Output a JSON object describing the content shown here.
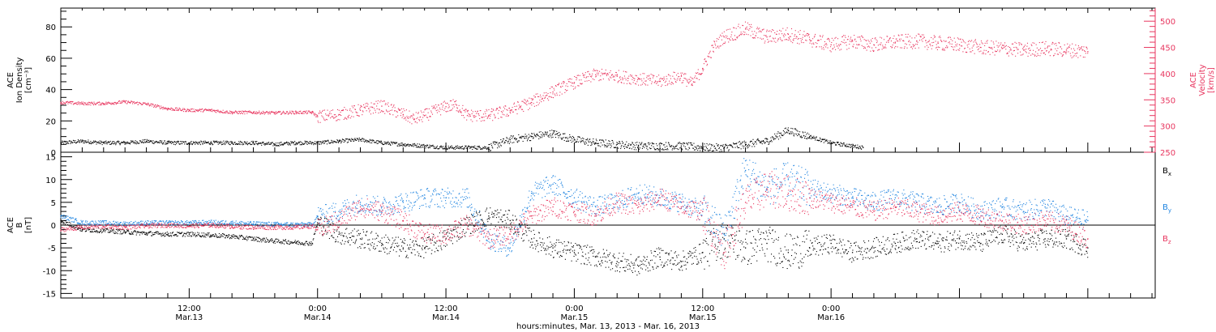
{
  "chart_data": [
    {
      "type": "scatter",
      "panel": "top",
      "left_axis_label": [
        "ACE",
        "Ion Density",
        "[cm⁻³]"
      ],
      "right_axis_label": [
        "ACE",
        "Velocity",
        "[km/s]"
      ],
      "left_ylim": [
        0,
        92
      ],
      "left_ticks": [
        "0",
        "20",
        "40",
        "60",
        "80"
      ],
      "right_ylim": [
        250,
        525
      ],
      "right_ticks": [
        "250",
        "300",
        "350",
        "400",
        "450",
        "500"
      ],
      "series": [
        {
          "color": "#000000",
          "axis": "left",
          "points": [
            [
              0,
              6
            ],
            [
              2,
              7
            ],
            [
              4,
              6
            ],
            [
              6,
              6
            ],
            [
              8,
              7
            ],
            [
              10,
              6
            ],
            [
              12,
              6
            ],
            [
              14,
              6
            ],
            [
              16,
              6
            ],
            [
              18,
              6
            ],
            [
              20,
              5
            ],
            [
              22,
              6
            ],
            [
              24,
              6
            ],
            [
              26,
              7
            ],
            [
              28,
              8
            ],
            [
              30,
              6
            ],
            [
              32,
              5
            ],
            [
              34,
              4
            ],
            [
              36,
              3
            ],
            [
              38,
              3
            ],
            [
              40,
              3
            ],
            [
              42,
              8
            ],
            [
              44,
              10
            ],
            [
              46,
              12
            ],
            [
              48,
              8
            ],
            [
              50,
              6
            ],
            [
              52,
              5
            ],
            [
              54,
              4
            ],
            [
              56,
              4
            ],
            [
              58,
              4
            ],
            [
              60,
              3
            ],
            [
              62,
              3
            ],
            [
              64,
              5
            ],
            [
              66,
              7
            ],
            [
              68,
              14
            ],
            [
              70,
              10
            ],
            [
              72,
              6
            ],
            [
              74,
              4
            ],
            [
              75,
              3
            ]
          ]
        },
        {
          "color": "#e8365f",
          "axis": "right",
          "points": [
            [
              0,
              345
            ],
            [
              2,
              343
            ],
            [
              4,
              343
            ],
            [
              6,
              346
            ],
            [
              8,
              342
            ],
            [
              10,
              333
            ],
            [
              12,
              330
            ],
            [
              14,
              330
            ],
            [
              16,
              326
            ],
            [
              18,
              326
            ],
            [
              20,
              325
            ],
            [
              22,
              326
            ],
            [
              23.5,
              326
            ],
            [
              24,
              318
            ],
            [
              26,
              322
            ],
            [
              28,
              330
            ],
            [
              30,
              338
            ],
            [
              32,
              322
            ],
            [
              33,
              313
            ],
            [
              34,
              320
            ],
            [
              36,
              337
            ],
            [
              37,
              340
            ],
            [
              38,
              320
            ],
            [
              40,
              320
            ],
            [
              42,
              330
            ],
            [
              44,
              345
            ],
            [
              46,
              365
            ],
            [
              48,
              383
            ],
            [
              50,
              398
            ],
            [
              52,
              395
            ],
            [
              54,
              390
            ],
            [
              56,
              385
            ],
            [
              58,
              395
            ],
            [
              59,
              380
            ],
            [
              60,
              410
            ],
            [
              61,
              450
            ],
            [
              62,
              470
            ],
            [
              64,
              485
            ],
            [
              66,
              470
            ],
            [
              68,
              475
            ],
            [
              70,
              465
            ],
            [
              72,
              455
            ],
            [
              74,
              462
            ],
            [
              76,
              455
            ],
            [
              78,
              460
            ],
            [
              80,
              462
            ],
            [
              82,
              458
            ],
            [
              84,
              455
            ],
            [
              86,
              450
            ],
            [
              88,
              448
            ],
            [
              90,
              445
            ],
            [
              92,
              448
            ],
            [
              94,
              445
            ],
            [
              96,
              442
            ]
          ]
        }
      ]
    },
    {
      "type": "scatter",
      "panel": "bottom",
      "left_axis_label": [
        "ACE",
        "B",
        "[nT]"
      ],
      "ylim": [
        -16,
        16
      ],
      "ticks": [
        "-15",
        "-10",
        "-5",
        "0",
        "5",
        "10",
        "15"
      ],
      "legend": [
        "Bx",
        "By",
        "Bz"
      ],
      "series": [
        {
          "name": "Bx",
          "color": "#000000",
          "points": [
            [
              0,
              1
            ],
            [
              2,
              -1
            ],
            [
              4,
              -1.2
            ],
            [
              6,
              -1.5
            ],
            [
              8,
              -1.8
            ],
            [
              10,
              -2
            ],
            [
              12,
              -2
            ],
            [
              14,
              -2.2
            ],
            [
              16,
              -2.5
            ],
            [
              18,
              -3
            ],
            [
              20,
              -3.5
            ],
            [
              22,
              -3.8
            ],
            [
              23.5,
              -4
            ],
            [
              24,
              0.5
            ],
            [
              26,
              -2
            ],
            [
              28,
              -3
            ],
            [
              30,
              -4
            ],
            [
              32,
              -5
            ],
            [
              34,
              -5
            ],
            [
              36,
              -3
            ],
            [
              38,
              0
            ],
            [
              40,
              2
            ],
            [
              42,
              1
            ],
            [
              44,
              -3
            ],
            [
              46,
              -5
            ],
            [
              48,
              -6
            ],
            [
              50,
              -7
            ],
            [
              52,
              -8
            ],
            [
              54,
              -9
            ],
            [
              56,
              -7
            ],
            [
              58,
              -8
            ],
            [
              60,
              -6
            ],
            [
              62,
              -3
            ],
            [
              64,
              -5
            ],
            [
              66,
              -4
            ],
            [
              68,
              -6
            ],
            [
              70,
              -5
            ],
            [
              72,
              -4
            ],
            [
              74,
              -6
            ],
            [
              76,
              -5
            ],
            [
              78,
              -4
            ],
            [
              80,
              -3
            ],
            [
              82,
              -4
            ],
            [
              84,
              -3
            ],
            [
              86,
              -4
            ],
            [
              88,
              -2
            ],
            [
              90,
              -4
            ],
            [
              92,
              -3
            ],
            [
              94,
              -3
            ],
            [
              96,
              -5
            ]
          ]
        },
        {
          "name": "By",
          "color": "#1f84e0",
          "points": [
            [
              0,
              2
            ],
            [
              2,
              0.5
            ],
            [
              4,
              0.5
            ],
            [
              6,
              0.3
            ],
            [
              8,
              0.5
            ],
            [
              10,
              0.5
            ],
            [
              12,
              0.5
            ],
            [
              14,
              0.6
            ],
            [
              16,
              0.5
            ],
            [
              18,
              0.3
            ],
            [
              20,
              0.2
            ],
            [
              22,
              0.1
            ],
            [
              23.5,
              0.1
            ],
            [
              24,
              2
            ],
            [
              26,
              3
            ],
            [
              28,
              5
            ],
            [
              30,
              4
            ],
            [
              32,
              5
            ],
            [
              34,
              6
            ],
            [
              36,
              6
            ],
            [
              38,
              6
            ],
            [
              40,
              -3
            ],
            [
              42,
              -5
            ],
            [
              44,
              7
            ],
            [
              46,
              9
            ],
            [
              48,
              6
            ],
            [
              50,
              4
            ],
            [
              52,
              5
            ],
            [
              54,
              7
            ],
            [
              56,
              6
            ],
            [
              58,
              5
            ],
            [
              60,
              3
            ],
            [
              62,
              -2
            ],
            [
              64,
              12
            ],
            [
              66,
              8
            ],
            [
              68,
              10
            ],
            [
              70,
              8
            ],
            [
              72,
              7
            ],
            [
              74,
              6
            ],
            [
              76,
              5
            ],
            [
              78,
              6
            ],
            [
              80,
              5
            ],
            [
              82,
              4
            ],
            [
              84,
              5
            ],
            [
              86,
              3
            ],
            [
              88,
              4
            ],
            [
              90,
              3
            ],
            [
              92,
              4
            ],
            [
              94,
              2
            ],
            [
              96,
              1
            ]
          ]
        },
        {
          "name": "Bz",
          "color": "#e8365f",
          "points": [
            [
              0,
              -1
            ],
            [
              2,
              -0.5
            ],
            [
              4,
              -0.3
            ],
            [
              6,
              -0.5
            ],
            [
              8,
              -0.2
            ],
            [
              10,
              0
            ],
            [
              12,
              -0.2
            ],
            [
              14,
              0
            ],
            [
              16,
              -0.3
            ],
            [
              18,
              -0.5
            ],
            [
              20,
              -0.5
            ],
            [
              22,
              -0.5
            ],
            [
              23.5,
              -0.2
            ],
            [
              24,
              -1
            ],
            [
              26,
              1
            ],
            [
              28,
              4
            ],
            [
              30,
              3
            ],
            [
              32,
              1
            ],
            [
              34,
              -2
            ],
            [
              36,
              -2
            ],
            [
              38,
              0
            ],
            [
              40,
              -3
            ],
            [
              42,
              -2
            ],
            [
              44,
              2
            ],
            [
              46,
              4
            ],
            [
              48,
              3
            ],
            [
              50,
              2
            ],
            [
              52,
              5
            ],
            [
              54,
              4
            ],
            [
              56,
              6
            ],
            [
              58,
              4
            ],
            [
              60,
              3
            ],
            [
              62,
              -6
            ],
            [
              64,
              5
            ],
            [
              66,
              8
            ],
            [
              68,
              7
            ],
            [
              70,
              6
            ],
            [
              72,
              5
            ],
            [
              74,
              4
            ],
            [
              76,
              3
            ],
            [
              78,
              4
            ],
            [
              80,
              3
            ],
            [
              82,
              2
            ],
            [
              84,
              3
            ],
            [
              86,
              2
            ],
            [
              88,
              1
            ],
            [
              90,
              0
            ],
            [
              92,
              1
            ],
            [
              94,
              0
            ],
            [
              96,
              -3
            ]
          ]
        }
      ]
    }
  ],
  "x_axis": {
    "ticks": [
      {
        "hours": 12,
        "time": "12:00",
        "date": "Mar.13"
      },
      {
        "hours": 24,
        "time": "0:00",
        "date": "Mar.14"
      },
      {
        "hours": 36,
        "time": "12:00",
        "date": "Mar.14"
      },
      {
        "hours": 48,
        "time": "0:00",
        "date": "Mar.15"
      },
      {
        "hours": 60,
        "time": "12:00",
        "date": "Mar.15"
      },
      {
        "hours": 72,
        "time": "0:00",
        "date": "Mar.16"
      }
    ],
    "title": "hours:minutes, Mar. 13, 2013 - Mar. 16, 2013"
  },
  "colors": {
    "black": "#000000",
    "blue": "#1f84e0",
    "red": "#e8365f"
  }
}
